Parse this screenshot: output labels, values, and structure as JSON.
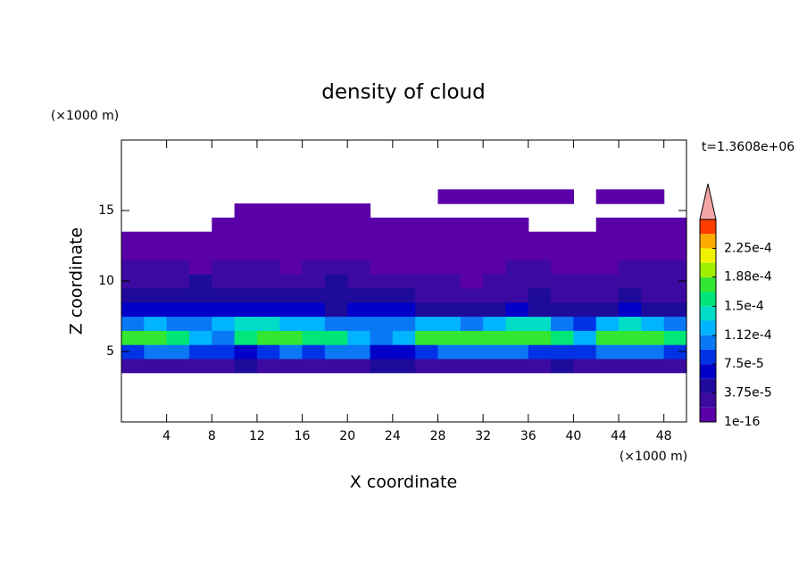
{
  "chart_data": {
    "type": "contour",
    "title": "density of cloud",
    "x_label": "X coordinate",
    "y_label": "Z coordinate",
    "x_unit": "(×1000 m)",
    "y_unit": "(×1000 m)",
    "annotation": "t=1.3608e+06",
    "xlim": [
      0,
      50
    ],
    "ylim": [
      0,
      20
    ],
    "xticks": [
      4,
      8,
      12,
      16,
      20,
      24,
      28,
      32,
      36,
      40,
      44,
      48
    ],
    "yticks": [
      5,
      10,
      15
    ],
    "x": [
      1,
      3,
      5,
      7,
      9,
      11,
      13,
      15,
      17,
      19,
      21,
      23,
      25,
      27,
      29,
      31,
      33,
      35,
      37,
      39,
      41,
      43,
      45,
      47,
      49
    ],
    "z": [
      4,
      5,
      6,
      7,
      8,
      9,
      10,
      11,
      12,
      13,
      14,
      15,
      16
    ],
    "values": [
      [
        2e-05,
        3e-05,
        2e-05,
        3e-05,
        2e-05,
        4e-05,
        3e-05,
        2e-05,
        3e-05,
        2e-05,
        3e-05,
        4e-05,
        5e-05,
        3e-05,
        2e-05,
        3e-05,
        2e-05,
        3e-05,
        2e-05,
        4e-05,
        3e-05,
        2e-05,
        3e-05,
        2e-05,
        3e-05
      ],
      [
        9e-05,
        0.0001,
        9.5e-05,
        8e-05,
        9e-05,
        7e-05,
        8.5e-05,
        0.0001,
        9e-05,
        0.000105,
        0.0001,
        7e-05,
        6e-05,
        9e-05,
        0.0001,
        9.5e-05,
        0.000105,
        0.0001,
        9e-05,
        8e-05,
        9e-05,
        0.0001,
        9.5e-05,
        0.0001,
        9e-05
      ],
      [
        0.00017,
        0.00018,
        0.00016,
        0.00012,
        0.00011,
        0.00016,
        0.000175,
        0.00018,
        0.000165,
        0.00015,
        0.00012,
        0.0001,
        0.00013,
        0.00018,
        0.000185,
        0.00017,
        0.000175,
        0.000185,
        0.00018,
        0.00016,
        0.00013,
        0.00017,
        0.00018,
        0.000175,
        0.00016
      ],
      [
        0.00011,
        0.00012,
        0.00011,
        0.0001,
        0.00012,
        0.000135,
        0.00014,
        0.00013,
        0.00012,
        0.00011,
        0.0001,
        0.00011,
        0.000105,
        0.00013,
        0.000125,
        0.00011,
        0.00013,
        0.00014,
        0.000135,
        0.00011,
        9e-05,
        0.00012,
        0.000135,
        0.00013,
        0.00011
      ],
      [
        6e-05,
        7e-05,
        6e-05,
        6.5e-05,
        7e-05,
        6e-05,
        6.5e-05,
        7e-05,
        6e-05,
        5.5e-05,
        6e-05,
        7e-05,
        6e-05,
        5e-05,
        4.5e-05,
        4e-05,
        5e-05,
        6e-05,
        5.5e-05,
        5e-05,
        4.5e-05,
        5e-05,
        6e-05,
        5e-05,
        4e-05
      ],
      [
        4e-05,
        5e-05,
        4e-05,
        4.5e-05,
        5e-05,
        4.5e-05,
        5e-05,
        4e-05,
        4.5e-05,
        5e-05,
        4e-05,
        4.5e-05,
        4e-05,
        3.5e-05,
        3e-05,
        2.5e-05,
        3e-05,
        3.5e-05,
        4e-05,
        3.5e-05,
        3e-05,
        3.5e-05,
        4e-05,
        3.5e-05,
        3e-05
      ],
      [
        3e-05,
        2.5e-05,
        3e-05,
        4e-05,
        3.5e-05,
        3e-05,
        2.5e-05,
        3e-05,
        3.5e-05,
        4e-05,
        3e-05,
        2.5e-05,
        2e-05,
        2.5e-05,
        2e-05,
        1.5e-05,
        2e-05,
        2.5e-05,
        3e-05,
        2.5e-05,
        2e-05,
        2.5e-05,
        3e-05,
        2.5e-05,
        2e-05
      ],
      [
        2e-05,
        2.5e-05,
        2e-05,
        1.5e-05,
        2e-05,
        2.5e-05,
        2e-05,
        1.5e-05,
        2e-05,
        2.5e-05,
        2e-05,
        1.5e-05,
        1e-05,
        1.5e-05,
        1e-05,
        1e-05,
        1.5e-05,
        2e-05,
        2e-05,
        1.5e-05,
        1e-05,
        1.5e-05,
        2e-05,
        2.5e-05,
        2e-05
      ],
      [
        1e-05,
        1.5e-05,
        1e-05,
        5e-06,
        1e-05,
        1e-05,
        5e-06,
        1e-05,
        1e-05,
        5e-06,
        5e-06,
        5e-06,
        5e-06,
        5e-06,
        5e-06,
        5e-06,
        5e-06,
        1e-05,
        5e-06,
        5e-06,
        5e-06,
        1e-05,
        1.5e-05,
        1e-05,
        1e-05
      ],
      [
        5e-06,
        5e-06,
        5e-06,
        5e-06,
        5e-06,
        5e-06,
        5e-06,
        5e-06,
        5e-06,
        5e-06,
        5e-06,
        5e-06,
        5e-06,
        5e-06,
        5e-06,
        5e-06,
        5e-06,
        5e-06,
        5e-06,
        5e-06,
        5e-06,
        5e-06,
        5e-06,
        5e-06,
        5e-06
      ],
      [
        null,
        null,
        null,
        null,
        5e-06,
        5e-06,
        5e-06,
        5e-06,
        5e-06,
        5e-06,
        5e-06,
        5e-06,
        5e-06,
        5e-06,
        5e-06,
        5e-06,
        5e-06,
        5e-06,
        null,
        null,
        null,
        5e-06,
        5e-06,
        5e-06,
        5e-06
      ],
      [
        null,
        null,
        null,
        null,
        null,
        3e-06,
        3e-06,
        3e-06,
        3e-06,
        3e-06,
        3e-06,
        null,
        null,
        null,
        null,
        null,
        null,
        null,
        null,
        null,
        null,
        null,
        null,
        null,
        null
      ],
      [
        null,
        null,
        null,
        null,
        null,
        null,
        null,
        null,
        null,
        null,
        null,
        null,
        null,
        null,
        3e-06,
        3e-06,
        3e-06,
        3e-06,
        3e-06,
        3e-06,
        null,
        3e-06,
        3e-06,
        3e-06,
        null
      ]
    ],
    "colorbar": {
      "clim": [
        0,
        0.0002625
      ],
      "colors": [
        "#5a00a8",
        "#3c0aa0",
        "#1e0a9b",
        "#0000c8",
        "#0032e6",
        "#0a78f5",
        "#00b4ff",
        "#00dcc8",
        "#00e678",
        "#32e632",
        "#a0f000",
        "#f0f000",
        "#ffaa00",
        "#ff3c00"
      ],
      "extend_color": "#f4a6a6",
      "ticks": [
        1e-16,
        {
          "value": 3.75e-05,
          "label": "3.75e-5"
        },
        {
          "value": 7.5e-05,
          "label": "7.5e-5"
        },
        {
          "value": 0.000112,
          "label": "1.12e-4"
        },
        {
          "value": 0.00015,
          "label": "1.5e-4"
        },
        {
          "value": 0.000188,
          "label": "1.88e-4"
        },
        {
          "value": 0.000225,
          "label": "2.25e-4"
        }
      ]
    }
  }
}
